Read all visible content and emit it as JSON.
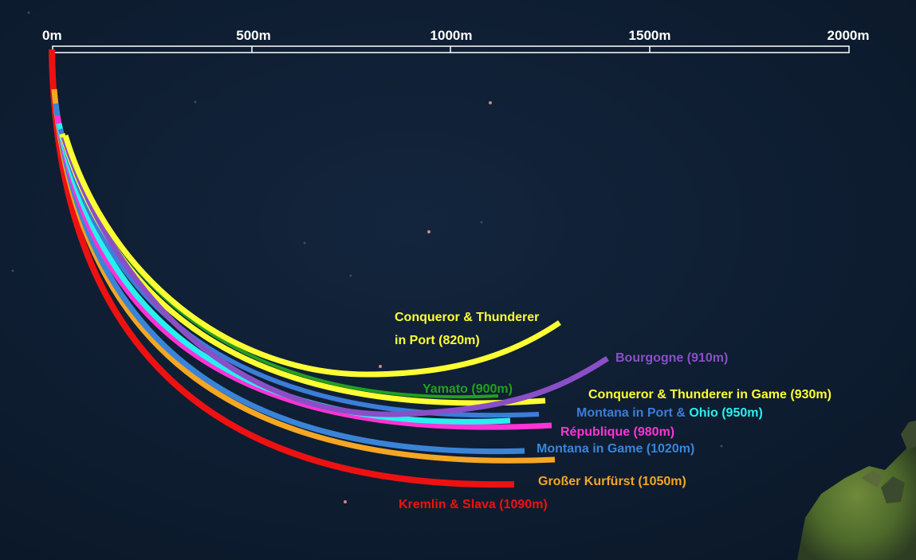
{
  "scale": {
    "ticks": [
      {
        "label": "0m"
      },
      {
        "label": "500m"
      },
      {
        "label": "1000m"
      },
      {
        "label": "1500m"
      },
      {
        "label": "2000m"
      }
    ]
  },
  "labels": {
    "conqueror_port_line1": "Conqueror & Thunderer",
    "conqueror_port_line2": "in Port (820m)",
    "bourgogne": "Bourgogne (910m)",
    "yamato": "Yamato (900m)",
    "conqueror_game": "Conqueror & Thunderer in Game (930m)",
    "montana_port": "Montana in Port & ",
    "ohio": "Ohio (950m)",
    "republique": "République (980m)",
    "montana_game": "Montana in Game (1020m)",
    "grosser": "Großer Kurfürst (1050m)",
    "kremlin": "Kremlin & Slava (1090m)"
  },
  "colors": {
    "sea": "#0f1e33",
    "scale": "#ffffff",
    "conqueror_port": "#ffff33",
    "bourgogne": "#8a4fc7",
    "yamato": "#22a01e",
    "conqueror_game": "#ffff33",
    "montana_port": "#3b7dd8",
    "ohio": "#28f0f0",
    "republique": "#ff33d6",
    "montana_game": "#3a84d8",
    "grosser": "#f5a623",
    "kremlin": "#ee1111",
    "island": "#4a6a2a"
  }
}
